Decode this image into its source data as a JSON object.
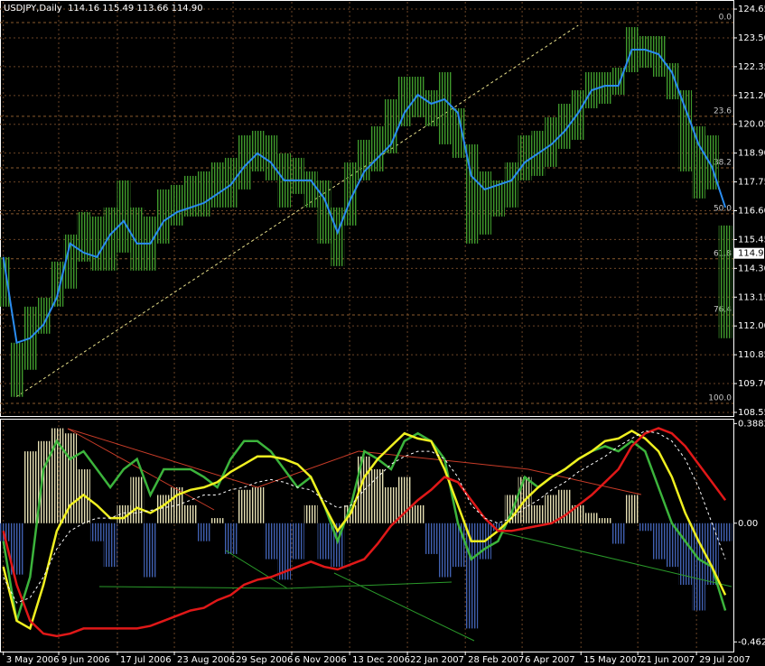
{
  "chart_data": [
    {
      "type": "hilo",
      "title": "USDJPY,Daily  114.16 115.49 113.66 114.90",
      "color": "#3f9a2c",
      "high": [
        114.75,
        111.33,
        112.77,
        113.13,
        114.57,
        115.65,
        116.55,
        116.37,
        116.73,
        117.81,
        116.73,
        116.37,
        117.45,
        117.63,
        117.99,
        118.17,
        118.53,
        118.71,
        119.61,
        119.79,
        119.61,
        118.89,
        118.71,
        118.17,
        117.81,
        116.73,
        118.53,
        119.43,
        119.97,
        121.05,
        121.95,
        121.95,
        121.41,
        122.13,
        120.69,
        119.25,
        118.17,
        117.81,
        118.53,
        119.61,
        119.79,
        120.33,
        120.87,
        121.41,
        122.13,
        122.13,
        122.31,
        123.93,
        123.57,
        123.57,
        122.49,
        121.41,
        119.97,
        119.61,
        116.01
      ],
      "low": [
        112.77,
        109.17,
        110.25,
        111.69,
        112.77,
        113.49,
        114.57,
        114.21,
        114.21,
        114.93,
        114.21,
        114.21,
        115.29,
        116.01,
        116.37,
        116.37,
        116.73,
        116.73,
        117.45,
        118.17,
        117.81,
        116.73,
        117.27,
        116.73,
        115.29,
        114.39,
        116.01,
        117.81,
        118.17,
        118.89,
        119.97,
        120.33,
        119.97,
        119.25,
        118.71,
        115.29,
        115.65,
        116.37,
        116.73,
        117.81,
        117.99,
        118.35,
        119.07,
        119.43,
        120.69,
        120.87,
        121.23,
        122.13,
        122.31,
        121.95,
        121.05,
        118.17,
        117.09,
        117.45,
        111.51
      ],
      "ma": {
        "color": "#2a8cf0",
        "values": [
          114.75,
          111.33,
          111.51,
          112.05,
          113.13,
          115.29,
          114.93,
          114.75,
          115.65,
          116.19,
          115.29,
          115.29,
          116.19,
          116.55,
          116.73,
          116.91,
          117.27,
          117.63,
          118.35,
          118.89,
          118.53,
          117.81,
          117.81,
          117.81,
          117.09,
          115.73,
          117.09,
          118.17,
          118.71,
          119.25,
          120.51,
          121.23,
          120.87,
          121.05,
          120.51,
          117.99,
          117.45,
          117.63,
          117.81,
          118.53,
          118.89,
          119.25,
          119.79,
          120.51,
          121.41,
          121.59,
          121.59,
          123.03,
          123.03,
          122.85,
          122.13,
          120.69,
          119.25,
          118.35,
          116.73
        ]
      },
      "last": {
        "value": 114.9,
        "label": "114.90"
      },
      "fibo": {
        "color": "#8a5a2e",
        "levels": [
          {
            "value": 124.11,
            "label": "0.0"
          },
          {
            "value": 120.37,
            "label": "23.6"
          },
          {
            "value": 118.31,
            "label": "38.2"
          },
          {
            "value": 116.48,
            "label": "50.0"
          },
          {
            "value": 114.68,
            "label": "61.8"
          },
          {
            "value": 112.44,
            "label": "76.4"
          },
          {
            "value": 108.91,
            "label": "100.0"
          }
        ]
      },
      "trendline": {
        "color": "#e8e08a",
        "x": [
          0.97,
          43
        ],
        "y": [
          109.17,
          124.0
        ]
      },
      "xlim": [
        -0.25,
        54.6
      ],
      "xticks": [
        {
          "value": 0,
          "label": "3 May 2006"
        },
        {
          "value": 4.14,
          "label": "9 Jun 2006"
        },
        {
          "value": 8.53,
          "label": "17 Jul 2006"
        },
        {
          "value": 12.79,
          "label": "23 Aug 2006"
        },
        {
          "value": 17.18,
          "label": "29 Sep 2006"
        },
        {
          "value": 21.57,
          "label": "6 Nov 2006"
        },
        {
          "value": 25.9,
          "label": "13 Dec 2006"
        },
        {
          "value": 30.22,
          "label": "22 Jan 2007"
        },
        {
          "value": 34.55,
          "label": "28 Feb 2007"
        },
        {
          "value": 38.8,
          "label": "6 Apr 2007"
        },
        {
          "value": 43.2,
          "label": "15 May 2007"
        },
        {
          "value": 47.45,
          "label": "21 Jun 2007"
        },
        {
          "value": 51.84,
          "label": "29 Jul 2007"
        }
      ],
      "ylim": [
        108.44,
        124.94
      ],
      "yticks": [
        124.65,
        {
          "value": 123.5,
          "label": "123.50"
        },
        122.35,
        {
          "value": 121.2,
          "label": "121.20"
        },
        120.05,
        {
          "value": 118.9,
          "label": "118.90"
        },
        117.75,
        {
          "value": 116.6,
          "label": "116.60"
        },
        115.45,
        {
          "value": 114.3,
          "label": "114.30"
        },
        113.15,
        {
          "value": 112,
          "label": "112.00"
        },
        110.85,
        {
          "value": 109.7,
          "label": "109.70"
        },
        108.55
      ],
      "grid": true,
      "grid_color": "#6b4426"
    },
    {
      "type": "oscillator",
      "histogram": {
        "pos_color": "#e6e0b4",
        "neg_color": "#4060b0",
        "values": [
          -0.07,
          -0.2,
          0.28,
          0.32,
          0.37,
          0.35,
          0.21,
          -0.07,
          -0.17,
          0.07,
          0.18,
          -0.21,
          0.11,
          0.14,
          0.07,
          -0.07,
          0.02,
          -0.12,
          0.13,
          0.14,
          -0.14,
          -0.22,
          -0.14,
          0.07,
          -0.14,
          -0.17,
          0.07,
          0.26,
          0.21,
          0.14,
          0.18,
          0.07,
          -0.12,
          -0.21,
          -0.17,
          -0.41,
          -0.14,
          -0.03,
          0.11,
          0.18,
          0.07,
          0.11,
          0.13,
          0.07,
          0.04,
          0.02,
          -0.08,
          0.11,
          -0.03,
          -0.14,
          -0.17,
          -0.24,
          -0.34,
          -0.24,
          -0.07
        ]
      },
      "series": [
        {
          "color": "#3cb43c",
          "values": [
            -0.07,
            -0.38,
            -0.21,
            0.21,
            0.32,
            0.25,
            0.28,
            0.21,
            0.14,
            0.21,
            0.25,
            0.11,
            0.21,
            0.21,
            0.21,
            0.18,
            0.14,
            0.25,
            0.32,
            0.32,
            0.28,
            0.21,
            0.14,
            0.18,
            0.07,
            -0.07,
            0.07,
            0.28,
            0.25,
            0.21,
            0.32,
            0.35,
            0.32,
            0.25,
            0.0,
            -0.14,
            -0.1,
            -0.07,
            0.04,
            0.18,
            0.14,
            0.18,
            0.21,
            0.25,
            0.28,
            0.3,
            0.28,
            0.32,
            0.28,
            0.14,
            0.0,
            -0.07,
            -0.14,
            -0.17,
            -0.34
          ]
        },
        {
          "color": "#f0f020",
          "values": [
            -0.17,
            -0.38,
            -0.41,
            -0.24,
            -0.03,
            0.07,
            0.11,
            0.07,
            0.02,
            0.02,
            0.06,
            0.04,
            0.07,
            0.11,
            0.13,
            0.14,
            0.16,
            0.2,
            0.23,
            0.26,
            0.26,
            0.25,
            0.23,
            0.18,
            0.07,
            -0.03,
            0.04,
            0.18,
            0.25,
            0.3,
            0.35,
            0.33,
            0.32,
            0.21,
            0.07,
            -0.07,
            -0.07,
            -0.03,
            0.02,
            0.09,
            0.14,
            0.18,
            0.21,
            0.25,
            0.28,
            0.32,
            0.33,
            0.36,
            0.33,
            0.28,
            0.18,
            0.04,
            -0.07,
            -0.17,
            -0.28
          ]
        },
        {
          "color": "#e01818",
          "values": [
            -0.03,
            -0.24,
            -0.38,
            -0.43,
            -0.44,
            -0.43,
            -0.41,
            -0.41,
            -0.41,
            -0.41,
            -0.41,
            -0.4,
            -0.38,
            -0.36,
            -0.34,
            -0.33,
            -0.3,
            -0.28,
            -0.24,
            -0.22,
            -0.21,
            -0.19,
            -0.17,
            -0.15,
            -0.17,
            -0.18,
            -0.16,
            -0.14,
            -0.08,
            -0.01,
            0.04,
            0.09,
            0.13,
            0.18,
            0.16,
            0.09,
            0.02,
            -0.03,
            -0.03,
            -0.02,
            -0.01,
            0.0,
            0.03,
            0.07,
            0.11,
            0.16,
            0.21,
            0.3,
            0.35,
            0.37,
            0.35,
            0.3,
            0.23,
            0.16,
            0.09
          ]
        },
        {
          "color": "#ffffff",
          "dash": true,
          "values": [
            -0.21,
            -0.31,
            -0.29,
            -0.21,
            -0.1,
            -0.03,
            0.0,
            0.02,
            0.02,
            0.04,
            0.04,
            0.05,
            0.06,
            0.07,
            0.09,
            0.11,
            0.11,
            0.13,
            0.14,
            0.16,
            0.17,
            0.16,
            0.14,
            0.13,
            0.09,
            0.06,
            0.07,
            0.13,
            0.18,
            0.23,
            0.26,
            0.28,
            0.28,
            0.25,
            0.18,
            0.07,
            0.02,
            0.0,
            0.02,
            0.06,
            0.09,
            0.13,
            0.16,
            0.2,
            0.23,
            0.26,
            0.3,
            0.33,
            0.36,
            0.35,
            0.32,
            0.25,
            0.14,
            0.0,
            -0.14
          ]
        }
      ],
      "ylim": [
        -0.5,
        0.4
      ],
      "yticks": [
        0.3882,
        {
          "value": 0,
          "label": "0.00"
        },
        -0.4624
      ]
    }
  ]
}
